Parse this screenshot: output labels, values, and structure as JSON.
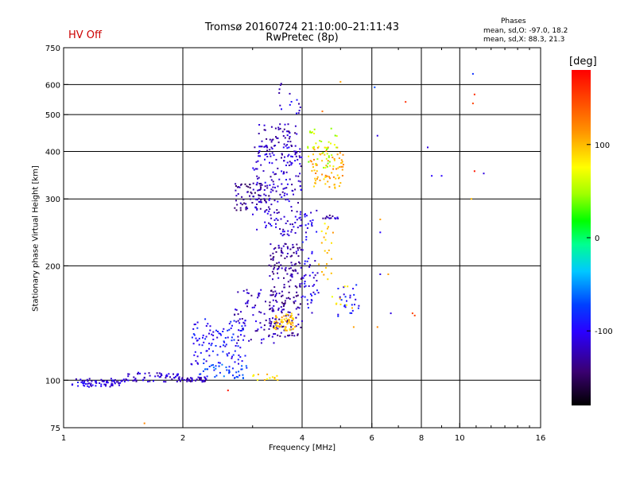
{
  "status_text": "HV Off",
  "title_line1": "Tromsø 20160724 21:10:00–21:11:43",
  "title_line2": "RwPretec (8p)",
  "phases": {
    "heading": "Phases",
    "o_line": "mean, sd,O: -97.0, 18.2",
    "x_line": "mean, sd,X:  88.3, 21.3"
  },
  "chart_data": {
    "type": "scatter",
    "title": "Tromsø 20160724 21:10:00–21:11:43",
    "subtitle": "RwPretec (8p)",
    "xlabel": "Frequency [MHz]",
    "ylabel": "Stationary phase Virtual Height [km]",
    "x_scale": "log",
    "y_scale": "log",
    "xlim": [
      1,
      16
    ],
    "ylim": [
      75,
      750
    ],
    "x_ticks": [
      1,
      2,
      4,
      6,
      8,
      10,
      16
    ],
    "x_tick_labels": [
      "1",
      "2",
      "4",
      "6",
      "8",
      "10",
      "16"
    ],
    "x_gridlines": [
      2,
      4,
      6,
      8,
      10
    ],
    "y_ticks": [
      75,
      100,
      200,
      300,
      400,
      500,
      600,
      750
    ],
    "y_tick_labels": [
      "75",
      "100",
      "200",
      "300",
      "400",
      "500",
      "600",
      "750"
    ],
    "y_gridlines": [
      100,
      200,
      300,
      400,
      500,
      600
    ],
    "grid": true,
    "colorbar": {
      "unit": "[deg]",
      "range": [
        -180,
        180
      ],
      "ticks": [
        100,
        0,
        -100
      ],
      "tick_labels": [
        "100",
        "0",
        "-100"
      ]
    },
    "series": [
      {
        "color_by": "phase_deg",
        "clusters": [
          {
            "x_range": [
              1.05,
              1.4
            ],
            "y_range": [
              96,
              101
            ],
            "phase": -110,
            "count": 70
          },
          {
            "x_range": [
              1.4,
              1.95
            ],
            "y_range": [
              99,
              105
            ],
            "phase": -115,
            "count": 60
          },
          {
            "x_range": [
              1.95,
              2.3
            ],
            "y_range": [
              99,
              102
            ],
            "phase": -120,
            "count": 40
          },
          {
            "x_range": [
              2.2,
              2.9
            ],
            "y_range": [
              101,
              110
            ],
            "phase": -75,
            "count": 45
          },
          {
            "x_range": [
              2.1,
              2.9
            ],
            "y_range": [
              110,
              145
            ],
            "phase": -95,
            "count": 110
          },
          {
            "x_range": [
              2.7,
              3.5
            ],
            "y_range": [
              125,
              175
            ],
            "phase": -120,
            "count": 80
          },
          {
            "x_range": [
              3.0,
              3.5
            ],
            "y_range": [
              100,
              104
            ],
            "phase": 95,
            "count": 15
          },
          {
            "x_range": [
              3.3,
              4.0
            ],
            "y_range": [
              130,
              230
            ],
            "phase": -130,
            "count": 200
          },
          {
            "x_range": [
              3.4,
              3.85
            ],
            "y_range": [
              135,
              150
            ],
            "phase": 100,
            "count": 60
          },
          {
            "x_range": [
              2.7,
              3.3
            ],
            "y_range": [
              280,
              330
            ],
            "phase": -135,
            "count": 70
          },
          {
            "x_range": [
              3.0,
              4.0
            ],
            "y_range": [
              240,
              420
            ],
            "phase": -115,
            "count": 220
          },
          {
            "x_range": [
              3.1,
              3.9
            ],
            "y_range": [
              420,
              475
            ],
            "phase": -125,
            "count": 40
          },
          {
            "x_range": [
              3.5,
              4.0
            ],
            "y_range": [
              500,
              610
            ],
            "phase": -110,
            "count": 15
          },
          {
            "x_range": [
              4.0,
              4.4
            ],
            "y_range": [
              150,
              280
            ],
            "phase": -105,
            "count": 60
          },
          {
            "x_range": [
              4.2,
              5.1
            ],
            "y_range": [
              320,
              410
            ],
            "phase": 105,
            "count": 80
          },
          {
            "x_range": [
              4.1,
              4.9
            ],
            "y_range": [
              360,
              460
            ],
            "phase": 55,
            "count": 40
          },
          {
            "x_range": [
              4.4,
              4.8
            ],
            "y_range": [
              180,
              260
            ],
            "phase": 95,
            "count": 20
          },
          {
            "x_range": [
              4.5,
              4.95
            ],
            "y_range": [
              266,
              272
            ],
            "phase": -125,
            "count": 15
          },
          {
            "x_range": [
              4.9,
              5.6
            ],
            "y_range": [
              145,
              180
            ],
            "phase": -95,
            "count": 25
          },
          {
            "x_range": [
              4.6,
              5.4
            ],
            "y_range": [
              150,
              190
            ],
            "phase": 90,
            "count": 10
          }
        ],
        "isolated_points": [
          {
            "x": 7.3,
            "y": 540,
            "phase": 160
          },
          {
            "x": 10.9,
            "y": 565,
            "phase": 160
          },
          {
            "x": 10.8,
            "y": 535,
            "phase": 150
          },
          {
            "x": 10.9,
            "y": 355,
            "phase": 170
          },
          {
            "x": 11.5,
            "y": 350,
            "phase": -110
          },
          {
            "x": 10.8,
            "y": 640,
            "phase": -80
          },
          {
            "x": 8.3,
            "y": 410,
            "phase": -110
          },
          {
            "x": 8.5,
            "y": 345,
            "phase": -100
          },
          {
            "x": 9.0,
            "y": 345,
            "phase": -100
          },
          {
            "x": 6.1,
            "y": 590,
            "phase": -70
          },
          {
            "x": 6.2,
            "y": 440,
            "phase": -110
          },
          {
            "x": 6.3,
            "y": 265,
            "phase": 110
          },
          {
            "x": 6.3,
            "y": 245,
            "phase": -100
          },
          {
            "x": 6.6,
            "y": 190,
            "phase": 110
          },
          {
            "x": 6.3,
            "y": 190,
            "phase": -110
          },
          {
            "x": 6.7,
            "y": 150,
            "phase": -110
          },
          {
            "x": 7.6,
            "y": 150,
            "phase": 150
          },
          {
            "x": 7.7,
            "y": 148,
            "phase": 150
          },
          {
            "x": 6.2,
            "y": 138,
            "phase": 120
          },
          {
            "x": 5.4,
            "y": 138,
            "phase": 110
          },
          {
            "x": 10.7,
            "y": 300,
            "phase": 100
          },
          {
            "x": 2.6,
            "y": 94,
            "phase": 170
          },
          {
            "x": 1.6,
            "y": 77,
            "phase": 120
          },
          {
            "x": 5.0,
            "y": 610,
            "phase": 110
          },
          {
            "x": 4.5,
            "y": 510,
            "phase": 130
          }
        ]
      }
    ]
  }
}
